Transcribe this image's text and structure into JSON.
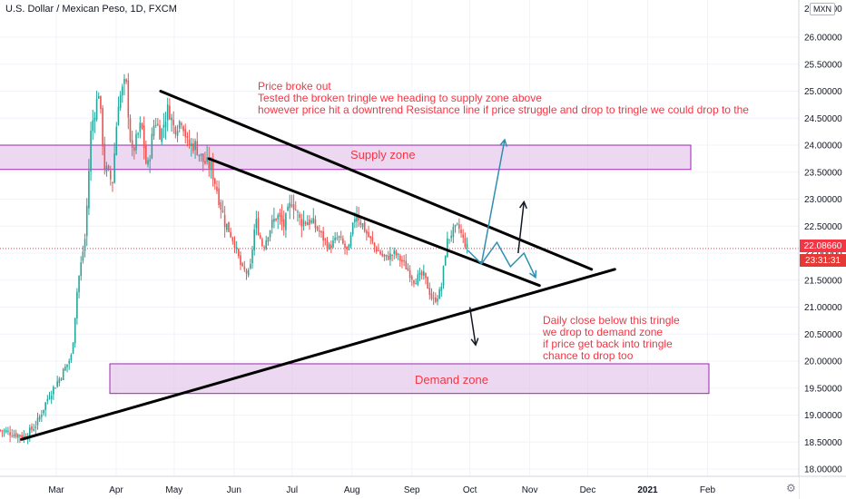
{
  "symbol": "U.S. Dollar / Mexican Peso, 1D, FXCM",
  "currency_button": "MXN",
  "colors": {
    "up": "#26a69a",
    "down": "#ef5350",
    "zone_fill": "#e1bee7",
    "zone_border": "#9c27b0",
    "text_red": "#f23645",
    "arrow_blue": "#2f8fb0",
    "trendline": "#000000",
    "last_price_bg": "#f23645",
    "timer_bg": "#e53935"
  },
  "annotations": {
    "breakout_note": "Price broke out\nTested the broken tringle we heading to supply zone above\nhowever price hit a downtrend Resistance line if price struggle and drop to tringle we could drop to the",
    "bottom_note": "Daily close below this tringle\nwe drop to demand zone\nif price get back into tringle\nchance to drop too",
    "supply_label": "Supply zone",
    "demand_label": "Demand zone"
  },
  "price_labels": {
    "last_price": "22.08660",
    "countdown": "23:31:31"
  },
  "chart_data": {
    "type": "candlestick",
    "title": "U.S. Dollar / Mexican Peso, 1D, FXCM",
    "y_ticks": [
      "26.00000",
      "25.50000",
      "25.00000",
      "24.50000",
      "24.00000",
      "23.50000",
      "23.00000",
      "22.50000",
      "22.00000",
      "21.50000",
      "21.00000",
      "20.50000",
      "20.00000",
      "19.50000",
      "19.00000",
      "18.50000",
      "18.00000"
    ],
    "x_ticks": [
      "Mar",
      "Apr",
      "May",
      "Jun",
      "Jul",
      "Aug",
      "Sep",
      "Oct",
      "Nov",
      "Dec",
      "2021",
      "Feb"
    ],
    "ylim": [
      17.8,
      26.9
    ],
    "close_path": [
      [
        "2020-02-01",
        18.72
      ],
      [
        "2020-02-14",
        18.6
      ],
      [
        "2020-02-20",
        18.85
      ],
      [
        "2020-02-26",
        19.35
      ],
      [
        "2020-03-03",
        19.7
      ],
      [
        "2020-03-09",
        20.1
      ],
      [
        "2020-03-12",
        21.4
      ],
      [
        "2020-03-16",
        22.3
      ],
      [
        "2020-03-19",
        24.3
      ],
      [
        "2020-03-23",
        25.0
      ],
      [
        "2020-03-26",
        23.6
      ],
      [
        "2020-03-30",
        23.3
      ],
      [
        "2020-04-02",
        24.8
      ],
      [
        "2020-04-06",
        25.2
      ],
      [
        "2020-04-09",
        23.8
      ],
      [
        "2020-04-14",
        24.4
      ],
      [
        "2020-04-17",
        23.5
      ],
      [
        "2020-04-21",
        24.5
      ],
      [
        "2020-04-24",
        24.2
      ],
      [
        "2020-04-28",
        24.7
      ],
      [
        "2020-05-01",
        24.3
      ],
      [
        "2020-05-05",
        24.5
      ],
      [
        "2020-05-08",
        24.0
      ],
      [
        "2020-05-12",
        24.0
      ],
      [
        "2020-05-16",
        23.7
      ],
      [
        "2020-05-20",
        23.6
      ],
      [
        "2020-05-23",
        23.2
      ],
      [
        "2020-05-27",
        22.6
      ],
      [
        "2020-06-01",
        22.2
      ],
      [
        "2020-06-05",
        21.7
      ],
      [
        "2020-06-09",
        21.6
      ],
      [
        "2020-06-12",
        22.6
      ],
      [
        "2020-06-16",
        22.1
      ],
      [
        "2020-06-19",
        22.4
      ],
      [
        "2020-06-23",
        22.7
      ],
      [
        "2020-06-27",
        22.5
      ],
      [
        "2020-07-01",
        23.0
      ],
      [
        "2020-07-05",
        22.6
      ],
      [
        "2020-07-10",
        22.6
      ],
      [
        "2020-07-15",
        22.4
      ],
      [
        "2020-07-20",
        22.1
      ],
      [
        "2020-07-25",
        22.3
      ],
      [
        "2020-07-30",
        22.0
      ],
      [
        "2020-08-03",
        22.8
      ],
      [
        "2020-08-08",
        22.4
      ],
      [
        "2020-08-13",
        22.1
      ],
      [
        "2020-08-18",
        21.9
      ],
      [
        "2020-08-23",
        22.0
      ],
      [
        "2020-08-28",
        21.8
      ],
      [
        "2020-09-02",
        21.5
      ],
      [
        "2020-09-07",
        21.6
      ],
      [
        "2020-09-12",
        21.1
      ],
      [
        "2020-09-16",
        21.3
      ],
      [
        "2020-09-19",
        22.2
      ],
      [
        "2020-09-22",
        22.4
      ],
      [
        "2020-09-25",
        22.5
      ],
      [
        "2020-09-28",
        22.2
      ],
      [
        "2020-09-30",
        22.08
      ]
    ],
    "zones": [
      {
        "name": "Supply zone",
        "from": 23.55,
        "to": 24.0
      },
      {
        "name": "Demand zone",
        "from": 19.4,
        "to": 19.95
      }
    ],
    "trendlines": [
      {
        "from": [
          "2020-04-24",
          25.0
        ],
        "to": [
          "2020-12-03",
          21.7
        ]
      },
      {
        "from": [
          "2020-05-19",
          23.75
        ],
        "to": [
          "2020-11-06",
          21.4
        ]
      },
      {
        "from": [
          "2020-02-12",
          18.55
        ],
        "to": [
          "2020-12-15",
          21.7
        ]
      }
    ],
    "arrows": [
      {
        "color": "blue",
        "points": [
          [
            "2020-10-07",
            21.8
          ],
          [
            "2020-10-19",
            24.1
          ]
        ]
      },
      {
        "color": "blue",
        "points": [
          [
            "2020-09-30",
            22.05
          ],
          [
            "2020-10-07",
            21.8
          ],
          [
            "2020-10-15",
            22.2
          ],
          [
            "2020-10-22",
            21.75
          ],
          [
            "2020-10-29",
            22.0
          ],
          [
            "2020-11-04",
            21.55
          ]
        ]
      },
      {
        "color": "black",
        "points": [
          [
            "2020-10-26",
            22.0
          ],
          [
            "2020-10-29",
            22.95
          ]
        ]
      },
      {
        "color": "black",
        "points": [
          [
            "2020-10-01",
            21.0
          ],
          [
            "2020-10-04",
            20.3
          ]
        ]
      }
    ],
    "last_price": 22.0866,
    "grid": true,
    "legend": "none"
  }
}
